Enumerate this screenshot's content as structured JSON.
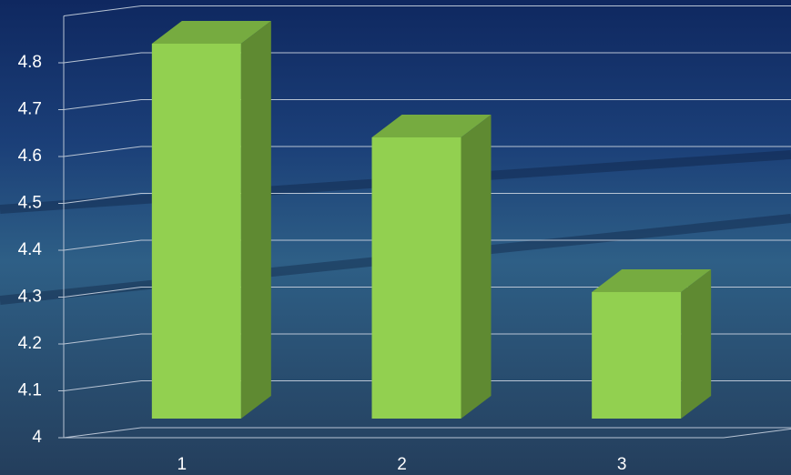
{
  "chart_data": {
    "type": "bar3d",
    "categories": [
      "1",
      "2",
      "3"
    ],
    "values": [
      4.8,
      4.6,
      4.27
    ],
    "color": "#92d050",
    "side_color": "#5f8a32",
    "top_color": "#76ab40",
    "ylim": [
      4,
      4.9
    ],
    "yticks": [
      4,
      4.1,
      4.2,
      4.3,
      4.4,
      4.5,
      4.6,
      4.7,
      4.8
    ],
    "grid": true
  }
}
